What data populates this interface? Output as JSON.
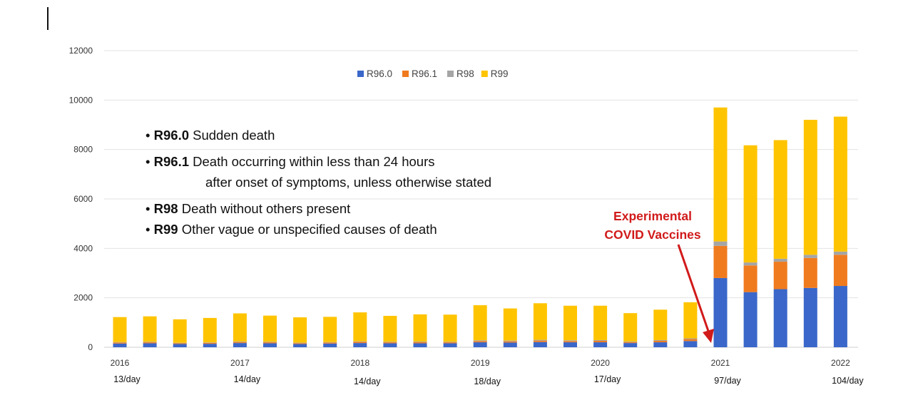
{
  "chart_data": {
    "type": "bar",
    "stacked": true,
    "ylim": [
      0,
      12000
    ],
    "yticks": [
      0,
      2000,
      4000,
      6000,
      8000,
      10000,
      12000
    ],
    "grid": true,
    "legend_position": "top-center",
    "series": [
      {
        "name": "R96.0",
        "color": "#3a67c9",
        "values": [
          150,
          160,
          130,
          140,
          170,
          160,
          130,
          150,
          170,
          160,
          160,
          160,
          200,
          190,
          210,
          200,
          200,
          170,
          200,
          250,
          2800,
          2230,
          2350,
          2400,
          2480
        ]
      },
      {
        "name": "R96.1",
        "color": "#f07b1e",
        "values": [
          40,
          40,
          30,
          35,
          40,
          40,
          35,
          40,
          50,
          40,
          50,
          40,
          50,
          50,
          60,
          50,
          60,
          40,
          60,
          80,
          1300,
          1080,
          1110,
          1210,
          1260
        ]
      },
      {
        "name": "R98",
        "color": "#a5a5a5",
        "values": [
          20,
          20,
          20,
          20,
          20,
          20,
          20,
          20,
          20,
          20,
          20,
          20,
          30,
          30,
          30,
          30,
          30,
          20,
          30,
          30,
          180,
          120,
          120,
          130,
          130
        ]
      },
      {
        "name": "R99",
        "color": "#ffc400",
        "values": [
          1010,
          1030,
          950,
          990,
          1140,
          1060,
          1025,
          1020,
          1170,
          1050,
          1100,
          1100,
          1420,
          1300,
          1480,
          1400,
          1390,
          1150,
          1230,
          1460,
          5420,
          4740,
          4800,
          5460,
          5460
        ]
      }
    ],
    "x_labels": [
      {
        "label": "2016",
        "bar": 0
      },
      {
        "label": "2017",
        "bar": 4
      },
      {
        "label": "2018",
        "bar": 8
      },
      {
        "label": "2019",
        "bar": 12
      },
      {
        "label": "2020",
        "bar": 16
      },
      {
        "label": "2021",
        "bar": 20
      },
      {
        "label": "2022",
        "bar": 24
      }
    ],
    "rate_labels": [
      "13/day",
      "14/day",
      "14/day",
      "18/day",
      "17/day",
      "97/day",
      "104/day"
    ]
  },
  "definitions": [
    {
      "code": "R96.0",
      "text": "Sudden death"
    },
    {
      "code": "R96.1",
      "text": "Death occurring within less than 24 hours",
      "continuation": "after onset of symptoms, unless otherwise stated"
    },
    {
      "code": "R98",
      "text": "Death without others present"
    },
    {
      "code": "R99",
      "text": "Other vague or unspecified causes of death"
    }
  ],
  "definition_bullet": "•",
  "annotation": {
    "line1": "Experimental",
    "line2": "COVID Vaccines",
    "color": "#d11a1a"
  }
}
